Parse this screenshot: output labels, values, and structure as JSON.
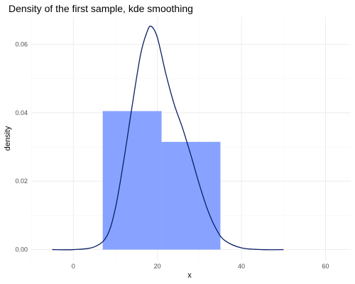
{
  "chart_data": {
    "type": "bar",
    "title": "Density of the first sample, kde smoothing",
    "xlabel": "x",
    "ylabel": "density",
    "xlim": [
      -10,
      66
    ],
    "ylim": [
      -0.003,
      0.068
    ],
    "x_ticks": [
      0,
      20,
      40,
      60
    ],
    "y_ticks": [
      0.0,
      0.02,
      0.04,
      0.06
    ],
    "x_tick_labels": [
      "0",
      "20",
      "40",
      "60"
    ],
    "y_tick_labels": [
      "0.00",
      "0.02",
      "0.04",
      "0.06"
    ],
    "grid": true,
    "histogram": {
      "color": "#87a3ff",
      "bins": [
        {
          "x0": 7,
          "x1": 21,
          "density": 0.0405
        },
        {
          "x0": 21,
          "x1": 35,
          "density": 0.0315
        }
      ]
    },
    "kde": {
      "color": "#0a1f66",
      "points": [
        [
          -5,
          0.0
        ],
        [
          0,
          0.0
        ],
        [
          5,
          0.0008
        ],
        [
          8,
          0.004
        ],
        [
          10,
          0.012
        ],
        [
          12,
          0.026
        ],
        [
          14,
          0.042
        ],
        [
          16,
          0.057
        ],
        [
          17.5,
          0.0635
        ],
        [
          18.5,
          0.0653
        ],
        [
          20,
          0.062
        ],
        [
          22,
          0.0515
        ],
        [
          24,
          0.0425
        ],
        [
          26,
          0.0355
        ],
        [
          28,
          0.0275
        ],
        [
          30,
          0.019
        ],
        [
          32,
          0.0115
        ],
        [
          34,
          0.006
        ],
        [
          36,
          0.0027
        ],
        [
          40,
          0.0005
        ],
        [
          45,
          0.0
        ],
        [
          50,
          0.0
        ]
      ]
    }
  }
}
